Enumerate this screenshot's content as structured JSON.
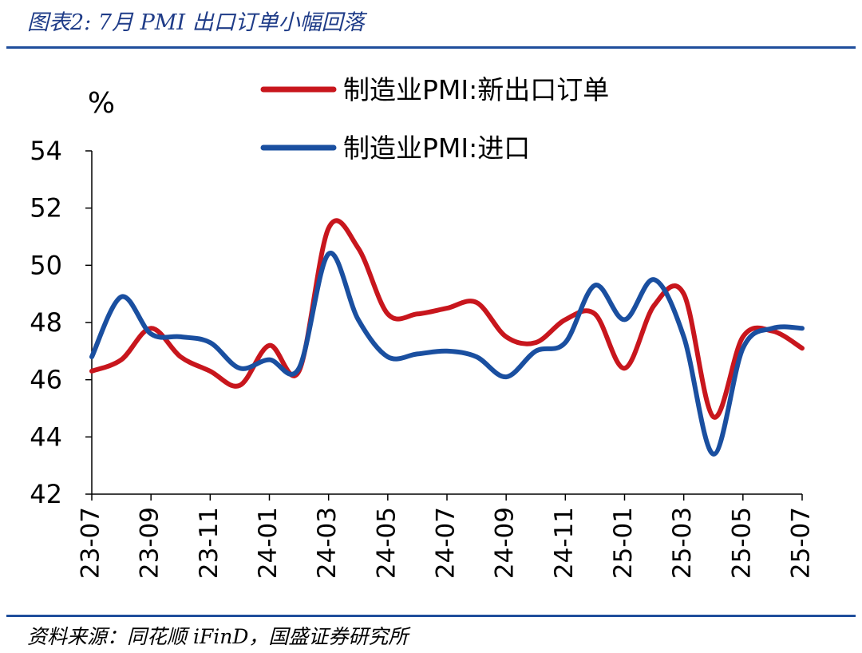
{
  "title": "图表2: 7月 PMI 出口订单小幅回落",
  "source": "资料来源：同花顺 iFinD，国盛证券研究所",
  "chart_data": {
    "type": "line",
    "ylabel": "%",
    "ylim": [
      42,
      54
    ],
    "yticks": [
      42,
      44,
      46,
      48,
      50,
      52,
      54
    ],
    "categories": [
      "23-07",
      "23-08",
      "23-09",
      "23-10",
      "23-11",
      "23-12",
      "24-01",
      "24-02",
      "24-03",
      "24-04",
      "24-05",
      "24-06",
      "24-07",
      "24-08",
      "24-09",
      "24-10",
      "24-11",
      "24-12",
      "25-01",
      "25-02",
      "25-03",
      "25-04",
      "25-05",
      "25-06",
      "25-07"
    ],
    "tick_labels": [
      "23-07",
      "23-09",
      "23-11",
      "24-01",
      "24-03",
      "24-05",
      "24-07",
      "24-09",
      "24-11",
      "25-01",
      "25-03",
      "25-05",
      "25-07"
    ],
    "legend_position": "top-right",
    "series": [
      {
        "name": "制造业PMI:新出口订单",
        "color": "#c8161d",
        "values": [
          46.3,
          46.7,
          47.8,
          46.8,
          46.3,
          45.8,
          47.2,
          46.3,
          51.3,
          50.6,
          48.3,
          48.3,
          48.5,
          48.7,
          47.5,
          47.3,
          48.1,
          48.3,
          46.4,
          48.6,
          49.0,
          44.7,
          47.5,
          47.7,
          47.1
        ]
      },
      {
        "name": "制造业PMI:进口",
        "color": "#1a4fa0",
        "values": [
          46.8,
          48.9,
          47.6,
          47.5,
          47.3,
          46.4,
          46.7,
          46.4,
          50.4,
          48.1,
          46.8,
          46.9,
          47.0,
          46.8,
          46.1,
          47.0,
          47.3,
          49.3,
          48.1,
          49.5,
          47.5,
          43.4,
          47.1,
          47.8,
          47.8
        ]
      }
    ],
    "grid": false
  }
}
